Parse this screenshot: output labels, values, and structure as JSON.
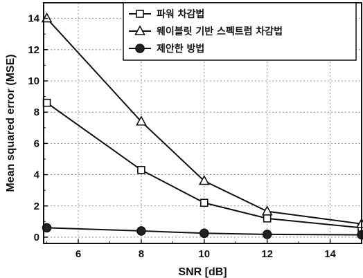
{
  "chart_data": {
    "type": "line",
    "xlabel": "SNR [dB]",
    "ylabel": "Mean squared error (MSE)",
    "xlim": [
      4.9,
      15.0
    ],
    "ylim": [
      -0.4,
      15.0
    ],
    "xticks": [
      6,
      8,
      10,
      12,
      14
    ],
    "yticks": [
      0,
      2,
      4,
      6,
      8,
      10,
      12,
      14
    ],
    "grid": true,
    "legend_position": "top-right",
    "x": [
      5,
      8,
      10,
      12,
      15
    ],
    "series": [
      {
        "name": "파워 차감법",
        "marker": "square-open",
        "values": [
          8.6,
          4.3,
          2.2,
          1.2,
          0.6
        ]
      },
      {
        "name": "웨이블릿 기반 스펙트럼 차감법",
        "marker": "triangle-open",
        "values": [
          14.0,
          7.4,
          3.6,
          1.65,
          0.85
        ]
      },
      {
        "name": "제안한 방법",
        "marker": "circle-filled",
        "values": [
          0.6,
          0.4,
          0.25,
          0.18,
          0.15
        ]
      }
    ]
  }
}
